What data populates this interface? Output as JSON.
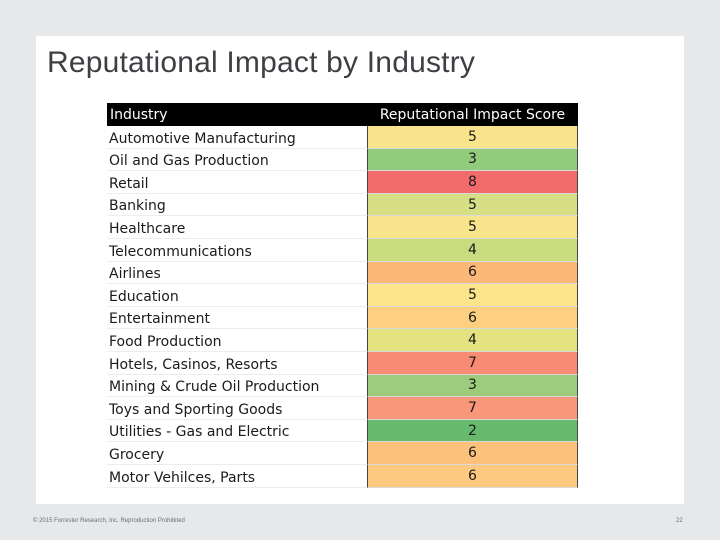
{
  "slide": {
    "title": "Reputational Impact by Industry",
    "footer": "© 2015 Forrester Research, Inc. Reproduction Prohibited",
    "page_number": "22"
  },
  "table": {
    "headers": [
      "Industry",
      "Reputational Impact Score"
    ],
    "rows": [
      {
        "industry": "Automotive Manufacturing",
        "score": "5",
        "color": "#f8e48a"
      },
      {
        "industry": "Oil and Gas Production",
        "score": "3",
        "color": "#92cb7b"
      },
      {
        "industry": "Retail",
        "score": "8",
        "color": "#f26b6c"
      },
      {
        "industry": "Banking",
        "score": "5",
        "color": "#d6df86"
      },
      {
        "industry": "Healthcare",
        "score": "5",
        "color": "#f8e48a"
      },
      {
        "industry": "Telecommunications",
        "score": "4",
        "color": "#c9dc80"
      },
      {
        "industry": "Airlines",
        "score": "6",
        "color": "#fcb879"
      },
      {
        "industry": "Education",
        "score": "5",
        "color": "#fbe48a"
      },
      {
        "industry": "Entertainment",
        "score": "6",
        "color": "#fcd07f"
      },
      {
        "industry": "Food Production",
        "score": "4",
        "color": "#e2e281"
      },
      {
        "industry": "Hotels, Casinos, Resorts",
        "score": "7",
        "color": "#f88b73"
      },
      {
        "industry": "Mining & Crude Oil Production",
        "score": "3",
        "color": "#9dcd7c"
      },
      {
        "industry": "Toys and Sporting Goods",
        "score": "7",
        "color": "#f9977a"
      },
      {
        "industry": "Utilities - Gas and Electric",
        "score": "2",
        "color": "#67b96e"
      },
      {
        "industry": "Grocery",
        "score": "6",
        "color": "#fcc27c"
      },
      {
        "industry": "Motor Vehilces, Parts",
        "score": "6",
        "color": "#fdc880"
      }
    ]
  }
}
